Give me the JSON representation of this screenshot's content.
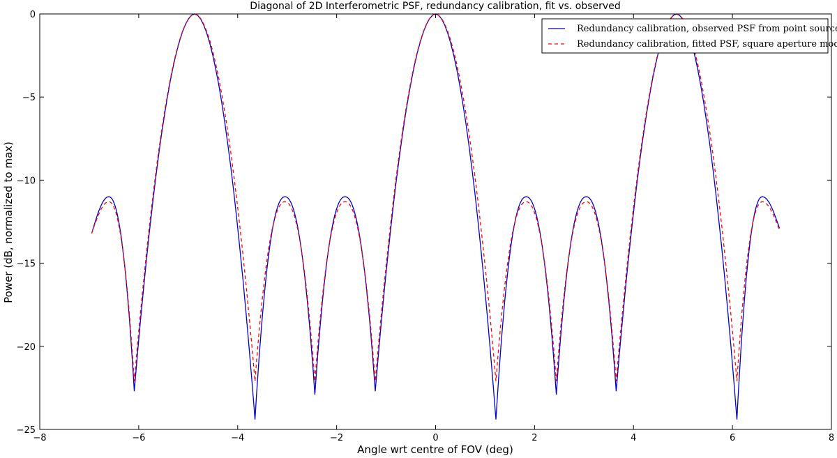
{
  "chart_data": {
    "type": "line",
    "title": "Diagonal of 2D Interferometric PSF, redundancy calibration, fit vs. observed",
    "xlabel": "Angle wrt centre of FOV (deg)",
    "ylabel": "Power (dB, normalized to max)",
    "xlim": [
      -8,
      8
    ],
    "ylim": [
      -25,
      0
    ],
    "xticks": [
      -8,
      -6,
      -4,
      -2,
      0,
      2,
      4,
      6,
      8
    ],
    "yticks": [
      0,
      -5,
      -10,
      -15,
      -20,
      -25
    ],
    "xtick_labels": [
      "−8",
      "−6",
      "−4",
      "−2",
      "0",
      "2",
      "4",
      "6",
      "8"
    ],
    "ytick_labels": [
      "0",
      "−5",
      "−10",
      "−15",
      "−20",
      "−25"
    ],
    "grid": false,
    "legend_position": "top-right",
    "x_range": [
      -6.95,
      6.95
    ],
    "main_lobes": [
      -4.87,
      0.0,
      4.87
    ],
    "series": [
      {
        "name": "Redundancy calibration, observed PSF from point source",
        "color": "#0000cc",
        "style": "solid",
        "sidelobe_peak_db": -11.0,
        "nulls": [
          {
            "x": -6.09,
            "db": -22.7
          },
          {
            "x": -3.65,
            "db": -24.4
          },
          {
            "x": -2.44,
            "db": -22.9
          },
          {
            "x": -1.22,
            "db": -22.7
          },
          {
            "x": 1.22,
            "db": -24.4
          },
          {
            "x": 2.44,
            "db": -22.9
          },
          {
            "x": 3.65,
            "db": -22.7
          },
          {
            "x": 6.09,
            "db": -24.4
          }
        ],
        "end_values": [
          -13.2,
          -12.9
        ]
      },
      {
        "name": "Redundancy calibration, fitted PSF, square aperture model",
        "color": "#ff0000",
        "style": "dashed",
        "sidelobe_peak_db": -11.3,
        "nulls": [
          {
            "x": -6.09,
            "db": -22.1
          },
          {
            "x": -3.65,
            "db": -22.1
          },
          {
            "x": -2.44,
            "db": -22.1
          },
          {
            "x": -1.22,
            "db": -22.1
          },
          {
            "x": 1.22,
            "db": -22.1
          },
          {
            "x": 2.44,
            "db": -22.1
          },
          {
            "x": 3.65,
            "db": -22.1
          },
          {
            "x": 6.09,
            "db": -22.1
          }
        ],
        "end_values": [
          -13.2,
          -13.0
        ]
      }
    ]
  }
}
